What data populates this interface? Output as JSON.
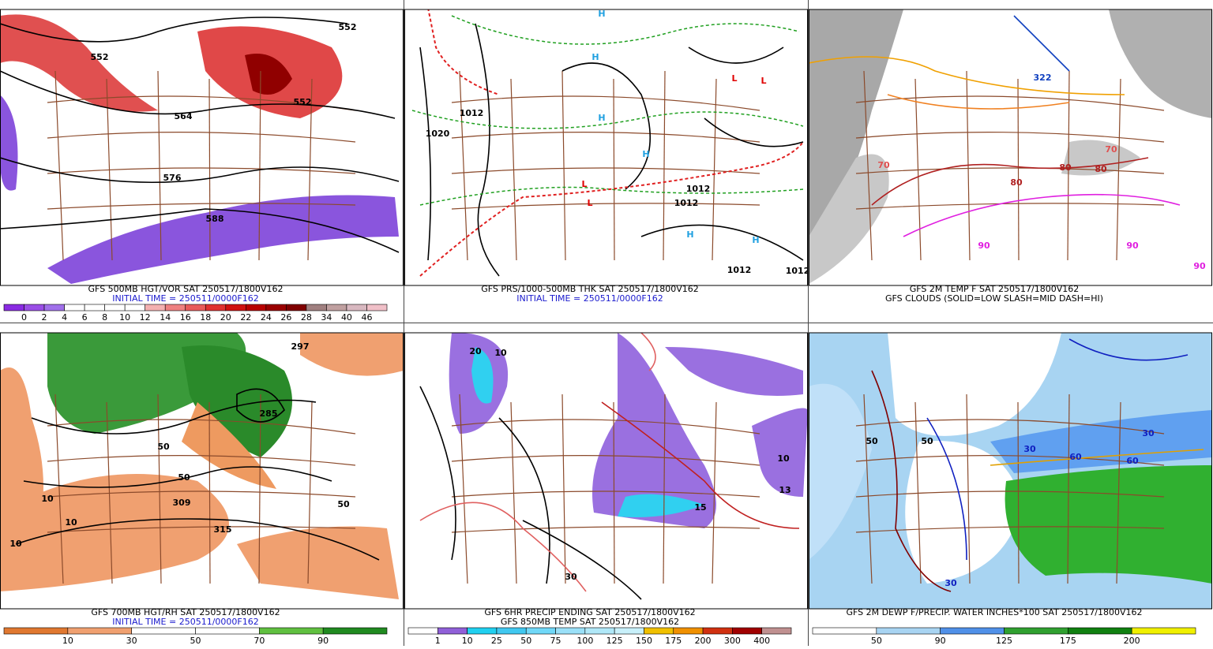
{
  "panels": [
    {
      "caption": [
        "GFS 500MB HGT/VOR SAT 250517/1800V162",
        "INITIAL TIME = 250511/0000F162"
      ],
      "colorbar": [
        0,
        2,
        4,
        6,
        8,
        10,
        12,
        14,
        16,
        18,
        20,
        22,
        24,
        26,
        28,
        34,
        40,
        46
      ],
      "map_labels": [
        "552",
        "552",
        "552",
        "564",
        "576",
        "588"
      ]
    },
    {
      "caption": [
        "GFS PRS/1000-500MB THK SAT 250517/1800V162",
        "INITIAL TIME = 250511/0000F162"
      ],
      "map_labels": [
        "1020",
        "1012",
        "1012",
        "1012",
        "1012",
        "1012",
        "L",
        "L",
        "L",
        "L",
        "H",
        "H",
        "H",
        "H",
        "H",
        "H"
      ]
    },
    {
      "caption": [
        "GFS 2M TEMP F SAT 250517/1800V162",
        "GFS CLOUDS (SOLID=LOW SLASH=MID DASH=HI)"
      ],
      "map_labels": [
        "70",
        "70",
        "80",
        "80",
        "80",
        "90",
        "90",
        "90",
        "322"
      ]
    },
    {
      "caption": [
        "GFS 700MB HGT/RH SAT 250517/1800V162",
        "INITIAL TIME = 250511/0000F162"
      ],
      "colorbar": [
        10,
        30,
        50,
        70,
        90
      ],
      "map_labels": [
        "50",
        "50",
        "50",
        "10",
        "10",
        "10",
        "309",
        "297",
        "285",
        "315"
      ]
    },
    {
      "caption": [
        "GFS 6HR PRECIP ENDING SAT 250517/1800V162",
        "GFS 850MB TEMP SAT 250517/1800V162"
      ],
      "colorbar": [
        1,
        10,
        25,
        50,
        75,
        100,
        125,
        150,
        175,
        200,
        300,
        400
      ],
      "map_labels": [
        "30",
        "20",
        "10",
        "13",
        "15",
        "10"
      ]
    },
    {
      "caption": [
        "GFS 2M DEWP F/PRECIP. WATER INCHES*100 SAT 250517/1800V162"
      ],
      "colorbar": [
        50,
        90,
        125,
        175,
        200
      ],
      "map_labels": [
        "50",
        "50",
        "30",
        "30",
        "30",
        "60",
        "60"
      ]
    }
  ]
}
